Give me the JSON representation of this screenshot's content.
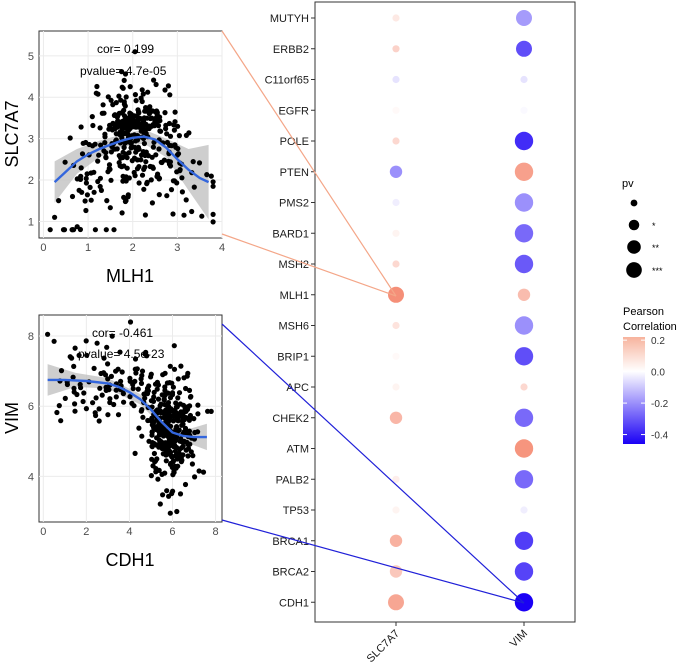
{
  "chart_data": [
    {
      "type": "scatter",
      "panel": "top-left",
      "xlabel": "MLH1",
      "ylabel": "SLC7A7",
      "xlim": [
        -0.1,
        4.0
      ],
      "ylim": [
        0.6,
        5.6
      ],
      "xticks": [
        "0",
        "1",
        "2",
        "3",
        "4"
      ],
      "yticks": [
        "1",
        "2",
        "3",
        "4",
        "5"
      ],
      "xtick_values": [
        0,
        1,
        2,
        3,
        4
      ],
      "ytick_values": [
        1,
        2,
        3,
        4,
        5
      ],
      "cor_text": "cor= 0.199",
      "pvalue_text": "pvalue= 4.7e-05",
      "smooth": [
        [
          0.25,
          1.95
        ],
        [
          0.5,
          2.2
        ],
        [
          0.75,
          2.45
        ],
        [
          1.0,
          2.62
        ],
        [
          1.25,
          2.75
        ],
        [
          1.5,
          2.85
        ],
        [
          1.75,
          2.95
        ],
        [
          2.0,
          3.02
        ],
        [
          2.25,
          3.05
        ],
        [
          2.5,
          2.98
        ],
        [
          2.75,
          2.78
        ],
        [
          3.0,
          2.5
        ],
        [
          3.25,
          2.25
        ],
        [
          3.5,
          2.05
        ],
        [
          3.7,
          1.95
        ]
      ],
      "band": [
        [
          0.25,
          1.45,
          2.45
        ],
        [
          0.75,
          2.15,
          2.75
        ],
        [
          1.25,
          2.55,
          2.95
        ],
        [
          1.75,
          2.8,
          3.1
        ],
        [
          2.25,
          2.88,
          3.22
        ],
        [
          2.75,
          2.55,
          3.0
        ],
        [
          3.25,
          1.75,
          2.75
        ],
        [
          3.7,
          1.05,
          2.85
        ]
      ]
    },
    {
      "type": "scatter",
      "panel": "bottom-left",
      "xlabel": "CDH1",
      "ylabel": "VIM",
      "xlim": [
        -0.2,
        8.3
      ],
      "ylim": [
        2.7,
        8.6
      ],
      "xticks": [
        "0",
        "2",
        "4",
        "6",
        "8"
      ],
      "yticks": [
        "4",
        "6",
        "8"
      ],
      "xtick_values": [
        0,
        2,
        4,
        6,
        8
      ],
      "ytick_values": [
        4,
        6,
        8
      ],
      "cor_text": "cor= -0.461",
      "pvalue_text": "pvalue= 4.5e-23",
      "smooth": [
        [
          0.2,
          6.75
        ],
        [
          1.0,
          6.75
        ],
        [
          2.0,
          6.72
        ],
        [
          3.0,
          6.65
        ],
        [
          3.5,
          6.55
        ],
        [
          4.0,
          6.4
        ],
        [
          4.5,
          6.2
        ],
        [
          5.0,
          5.9
        ],
        [
          5.5,
          5.55
        ],
        [
          6.0,
          5.25
        ],
        [
          6.5,
          5.15
        ],
        [
          7.0,
          5.12
        ],
        [
          7.6,
          5.12
        ]
      ],
      "band": [
        [
          0.2,
          6.3,
          7.2
        ],
        [
          1.5,
          6.55,
          6.95
        ],
        [
          3.0,
          6.5,
          6.8
        ],
        [
          4.5,
          6.05,
          6.35
        ],
        [
          5.5,
          5.45,
          5.65
        ],
        [
          6.5,
          5.0,
          5.3
        ],
        [
          7.6,
          4.75,
          5.5
        ]
      ]
    },
    {
      "type": "bubble",
      "panel": "right",
      "columns": [
        "SLC7A7",
        "VIM"
      ],
      "rows": [
        "MUTYH",
        "ERBB2",
        "C11orf65",
        "EGFR",
        "POLE",
        "PTEN",
        "PMS2",
        "BARD1",
        "MSH2",
        "MLH1",
        "MSH6",
        "BRIP1",
        "APC",
        "CHEK2",
        "ATM",
        "PALB2",
        "TP53",
        "BRCA1",
        "BRCA2",
        "CDH1"
      ],
      "slc7a7_values": [
        {
          "cor": 0.04,
          "pv": 0
        },
        {
          "cor": 0.08,
          "pv": 0
        },
        {
          "cor": -0.05,
          "pv": 0
        },
        {
          "cor": 0.01,
          "pv": 0
        },
        {
          "cor": 0.07,
          "pv": 0
        },
        {
          "cor": -0.2,
          "pv": 1
        },
        {
          "cor": -0.03,
          "pv": 0
        },
        {
          "cor": 0.02,
          "pv": 0
        },
        {
          "cor": 0.07,
          "pv": 0
        },
        {
          "cor": 0.2,
          "pv": 2
        },
        {
          "cor": 0.05,
          "pv": 0
        },
        {
          "cor": 0.01,
          "pv": 0
        },
        {
          "cor": 0.02,
          "pv": 0
        },
        {
          "cor": 0.13,
          "pv": 1
        },
        {
          "cor": 0.0,
          "pv": 0
        },
        {
          "cor": 0.03,
          "pv": 0
        },
        {
          "cor": 0.02,
          "pv": 0
        },
        {
          "cor": 0.14,
          "pv": 1
        },
        {
          "cor": 0.1,
          "pv": 1
        },
        {
          "cor": 0.16,
          "pv": 2
        }
      ],
      "vim_values": [
        {
          "cor": -0.18,
          "pv": 2
        },
        {
          "cor": -0.32,
          "pv": 2
        },
        {
          "cor": -0.05,
          "pv": 0
        },
        {
          "cor": -0.01,
          "pv": 0
        },
        {
          "cor": -0.38,
          "pv": 3
        },
        {
          "cor": 0.17,
          "pv": 3
        },
        {
          "cor": -0.2,
          "pv": 3
        },
        {
          "cor": -0.27,
          "pv": 3
        },
        {
          "cor": -0.3,
          "pv": 3
        },
        {
          "cor": 0.12,
          "pv": 1
        },
        {
          "cor": -0.2,
          "pv": 3
        },
        {
          "cor": -0.32,
          "pv": 3
        },
        {
          "cor": 0.07,
          "pv": 0
        },
        {
          "cor": -0.27,
          "pv": 3
        },
        {
          "cor": 0.19,
          "pv": 3
        },
        {
          "cor": -0.27,
          "pv": 3
        },
        {
          "cor": -0.03,
          "pv": 0
        },
        {
          "cor": -0.35,
          "pv": 3
        },
        {
          "cor": -0.34,
          "pv": 3
        },
        {
          "cor": -0.461,
          "pv": 3
        }
      ],
      "legend_pv_title": "pv",
      "legend_pv_labels": [
        "",
        "*",
        "**",
        "***"
      ],
      "legend_color_title": [
        "Pearson",
        "Correlation"
      ],
      "legend_color_ticks": [
        "0.2",
        "0.0",
        "-0.2",
        "-0.4"
      ],
      "legend_color_tick_values": [
        0.2,
        0.0,
        -0.2,
        -0.4
      ],
      "color_range": [
        -0.46,
        0.22
      ]
    }
  ],
  "colors": {
    "smooth_line": "#3366dd",
    "band": "#bdbdbd",
    "grid": "#ebebeb",
    "link_top": "#f4a688",
    "link_bottom": "#2020d8",
    "pos": "#f4846a",
    "neg": "#1a00f5"
  }
}
